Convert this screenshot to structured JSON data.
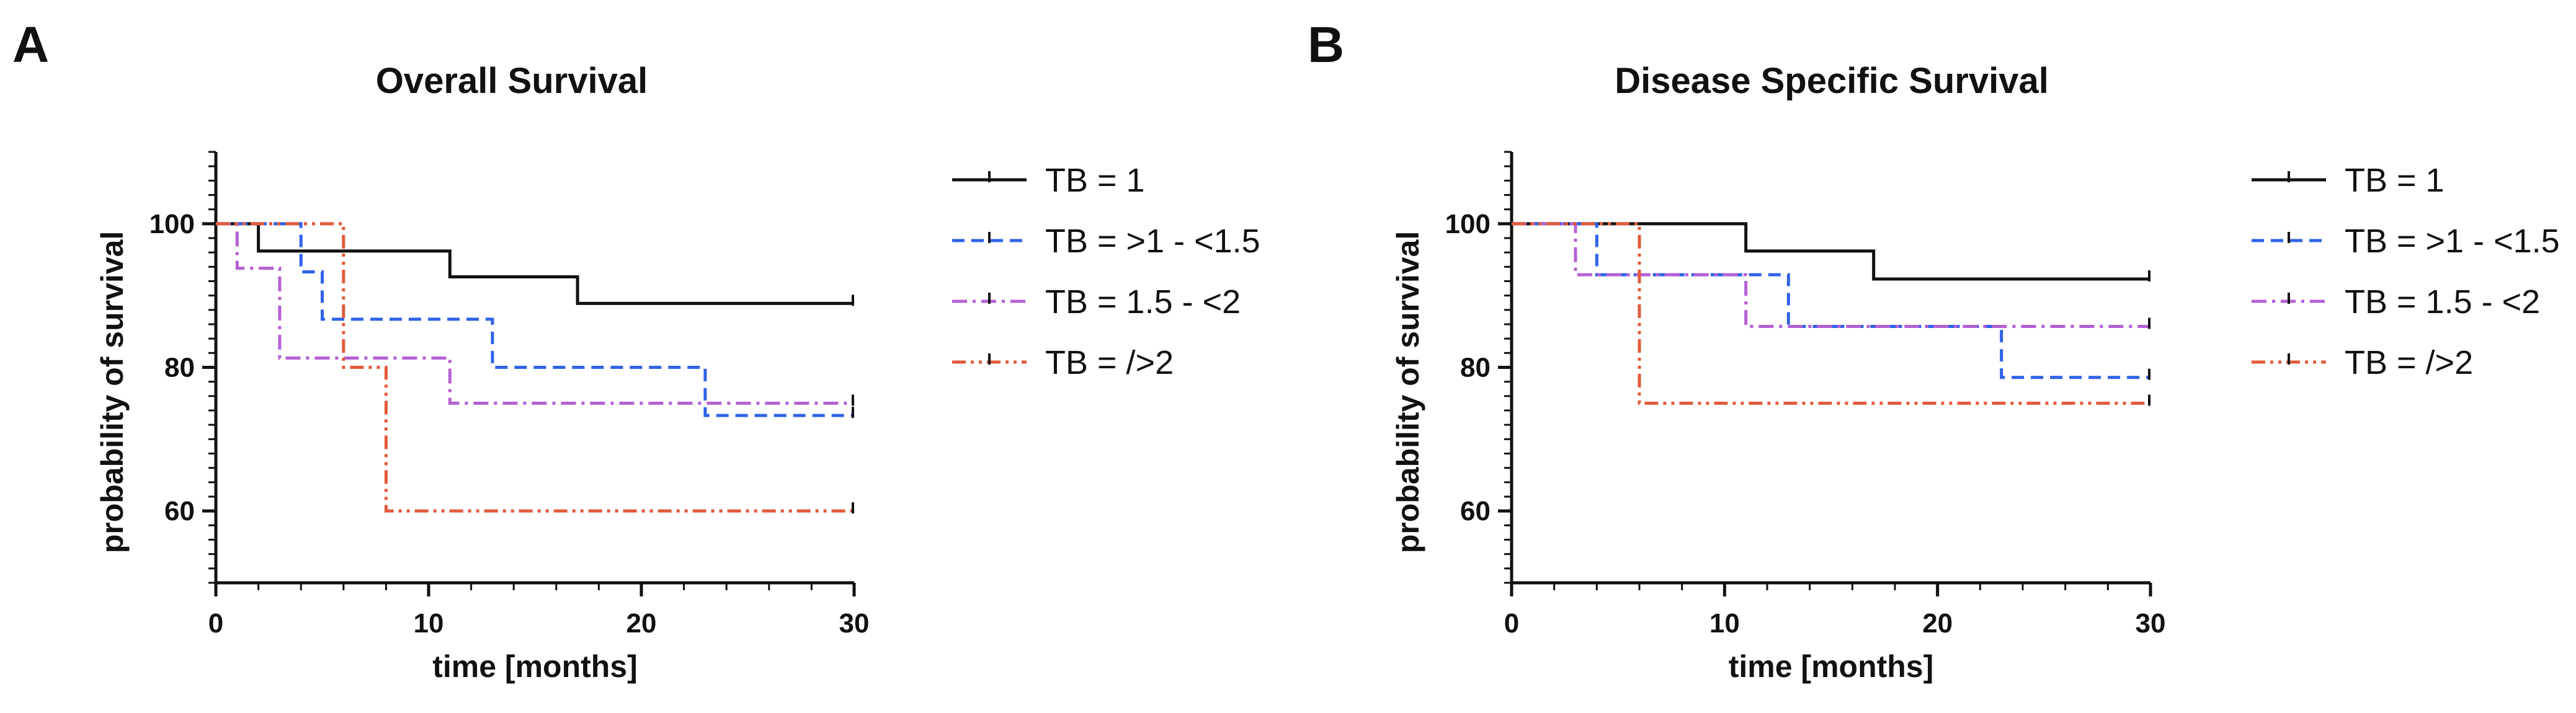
{
  "chart_data": [
    {
      "panel_label": "A",
      "type": "line",
      "step": true,
      "title": "Overall Survival",
      "xlabel": "time [months]",
      "ylabel": "probability of survival",
      "xlim": [
        0,
        30
      ],
      "ylim": [
        50,
        110
      ],
      "xticks": [
        0,
        10,
        20,
        30
      ],
      "yticks": [
        60,
        80,
        100
      ],
      "legend_position": "right",
      "series": [
        {
          "name": "TB = 1",
          "color": "#111111",
          "dash": "solid",
          "x": [
            0,
            2,
            11,
            17,
            30
          ],
          "y": [
            100,
            96.2,
            92.6,
            88.9,
            88.9
          ]
        },
        {
          "name": "TB = >1 - <1.5",
          "color": "#2f62e8",
          "dash": "dash",
          "x": [
            0,
            4,
            5,
            13,
            23,
            30
          ],
          "y": [
            100,
            93.3,
            86.7,
            80,
            73.3,
            73.3
          ]
        },
        {
          "name": "TB = 1.5 - <2",
          "color": "#b460d4",
          "dash": "dashdot",
          "x": [
            0,
            1,
            3,
            11,
            30
          ],
          "y": [
            100,
            93.8,
            81.3,
            75,
            75
          ]
        },
        {
          "name": "TB = />2",
          "color": "#e25a3a",
          "dash": "dashdotdot",
          "x": [
            0,
            6,
            8,
            30
          ],
          "y": [
            100,
            80,
            60,
            60
          ]
        }
      ]
    },
    {
      "panel_label": "B",
      "type": "line",
      "step": true,
      "title": "Disease Specific Survival",
      "xlabel": "time [months]",
      "ylabel": "probability of survival",
      "xlim": [
        0,
        30
      ],
      "ylim": [
        50,
        110
      ],
      "xticks": [
        0,
        10,
        20,
        30
      ],
      "yticks": [
        60,
        80,
        100
      ],
      "legend_position": "right",
      "series": [
        {
          "name": "TB = 1",
          "color": "#111111",
          "dash": "solid",
          "x": [
            0,
            11,
            17,
            30
          ],
          "y": [
            100,
            96.2,
            92.3,
            92.3
          ]
        },
        {
          "name": "TB = >1 - <1.5",
          "color": "#2f62e8",
          "dash": "dash",
          "x": [
            0,
            4,
            13,
            23,
            30
          ],
          "y": [
            100,
            92.9,
            85.7,
            78.6,
            78.6
          ]
        },
        {
          "name": "TB = 1.5 - <2",
          "color": "#b460d4",
          "dash": "dashdot",
          "x": [
            0,
            3,
            11,
            30
          ],
          "y": [
            100,
            92.9,
            85.7,
            85.7
          ]
        },
        {
          "name": "TB = />2",
          "color": "#e25a3a",
          "dash": "dashdotdot",
          "x": [
            0,
            6,
            30
          ],
          "y": [
            100,
            75,
            75
          ]
        }
      ]
    }
  ]
}
